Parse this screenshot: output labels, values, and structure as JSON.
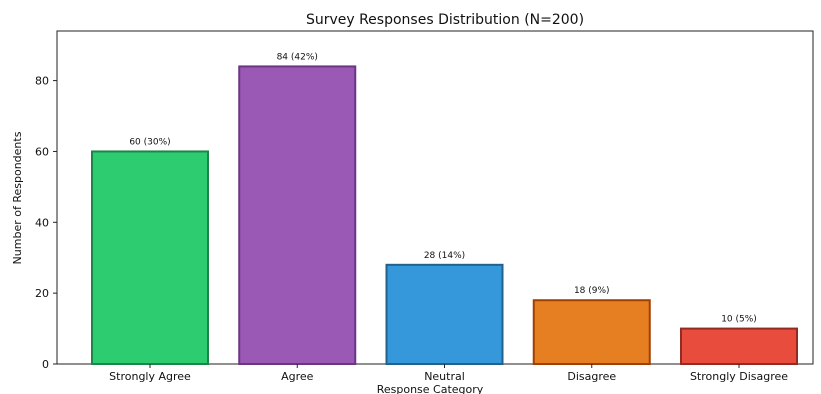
{
  "chart_data": {
    "type": "bar",
    "title": "Survey Responses Distribution (N=200)",
    "xlabel": "Response Category",
    "ylabel": "Number of Respondents",
    "categories": [
      "Strongly Agree",
      "Agree",
      "Neutral",
      "Disagree",
      "Strongly Disagree"
    ],
    "values": [
      60,
      84,
      28,
      18,
      10
    ],
    "data_labels": [
      "60 (30%)",
      "84 (42%)",
      "28 (14%)",
      "18 (9%)",
      "10 (5%)"
    ],
    "ylim": [
      0,
      94
    ],
    "yticks": [
      0,
      20,
      40,
      60,
      80
    ],
    "grid": false,
    "colors": {
      "fills": [
        "#2ecc71",
        "#9b59b6",
        "#3498db",
        "#e67e22",
        "#e74c3c"
      ],
      "edges": [
        "#1e8449",
        "#6c3483",
        "#21618c",
        "#a04000",
        "#922b21"
      ]
    }
  }
}
